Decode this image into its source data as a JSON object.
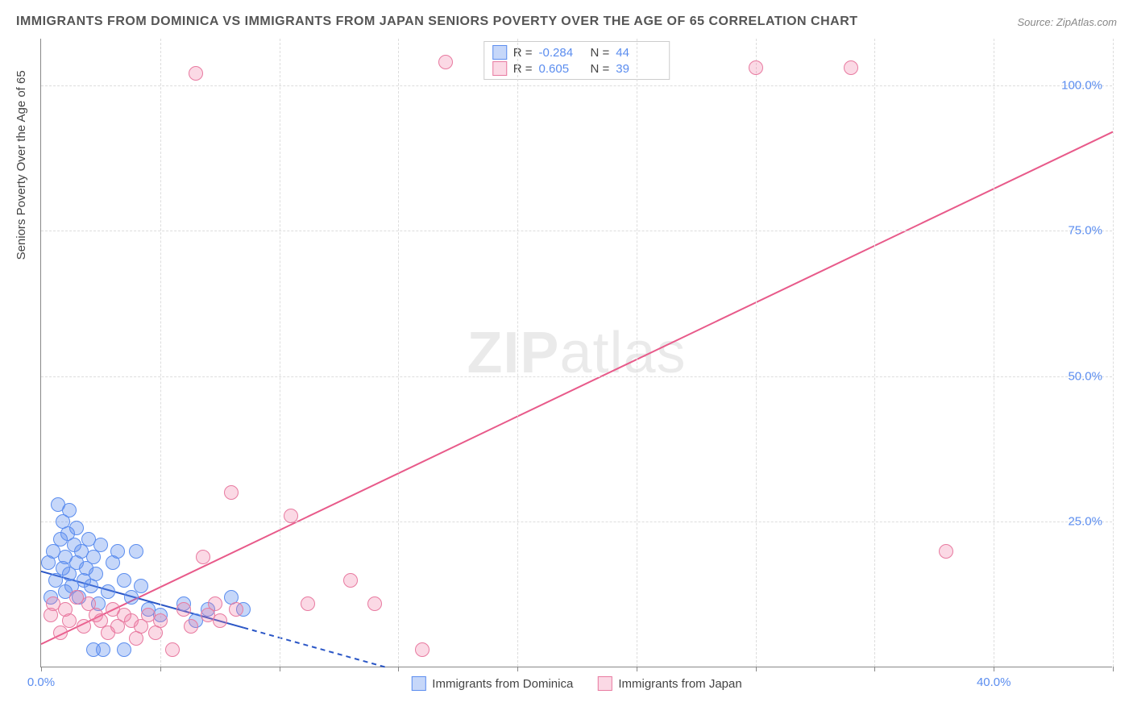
{
  "chart": {
    "type": "scatter",
    "title": "IMMIGRANTS FROM DOMINICA VS IMMIGRANTS FROM JAPAN SENIORS POVERTY OVER THE AGE OF 65 CORRELATION CHART",
    "source": "Source: ZipAtlas.com",
    "watermark": "ZIPatlas",
    "y_axis_label": "Seniors Poverty Over the Age of 65",
    "background_color": "#ffffff",
    "grid_color": "#dddddd",
    "axis_color": "#888888",
    "tick_label_color": "#5b8def",
    "xlim": [
      0,
      45
    ],
    "ylim": [
      0,
      108
    ],
    "x_ticks": [
      0,
      5,
      10,
      15,
      20,
      25,
      30,
      35,
      40,
      45
    ],
    "x_tick_labels": {
      "0": "0.0%",
      "40": "40.0%"
    },
    "y_ticks": [
      25,
      50,
      75,
      100
    ],
    "y_tick_labels": {
      "25": "25.0%",
      "50": "50.0%",
      "75": "75.0%",
      "100": "100.0%"
    },
    "marker_radius": 9,
    "marker_border_width": 1,
    "series": [
      {
        "name": "Immigrants from Dominica",
        "fill_color": "rgba(91,141,239,0.35)",
        "border_color": "#5b8def",
        "r_value": "-0.284",
        "n_value": "44",
        "trend": {
          "x1": 0,
          "y1": 16.5,
          "x2": 14.5,
          "y2": 0,
          "solid_until_x": 8.5,
          "color": "#2a56c6",
          "width": 2
        },
        "points": [
          [
            0.3,
            18
          ],
          [
            0.4,
            12
          ],
          [
            0.5,
            20
          ],
          [
            0.6,
            15
          ],
          [
            0.7,
            28
          ],
          [
            0.8,
            22
          ],
          [
            0.9,
            25
          ],
          [
            0.9,
            17
          ],
          [
            1.0,
            13
          ],
          [
            1.0,
            19
          ],
          [
            1.1,
            23
          ],
          [
            1.2,
            16
          ],
          [
            1.2,
            27
          ],
          [
            1.3,
            14
          ],
          [
            1.4,
            21
          ],
          [
            1.5,
            18
          ],
          [
            1.5,
            24
          ],
          [
            1.6,
            12
          ],
          [
            1.7,
            20
          ],
          [
            1.8,
            15
          ],
          [
            1.9,
            17
          ],
          [
            2.0,
            22
          ],
          [
            2.1,
            14
          ],
          [
            2.2,
            19
          ],
          [
            2.2,
            3
          ],
          [
            2.3,
            16
          ],
          [
            2.4,
            11
          ],
          [
            2.5,
            21
          ],
          [
            2.6,
            3
          ],
          [
            2.8,
            13
          ],
          [
            3.0,
            18
          ],
          [
            3.2,
            20
          ],
          [
            3.5,
            15
          ],
          [
            3.5,
            3
          ],
          [
            3.8,
            12
          ],
          [
            4.0,
            20
          ],
          [
            4.2,
            14
          ],
          [
            4.5,
            10
          ],
          [
            5.0,
            9
          ],
          [
            6.0,
            11
          ],
          [
            6.5,
            8
          ],
          [
            7.0,
            10
          ],
          [
            8.0,
            12
          ],
          [
            8.5,
            10
          ]
        ]
      },
      {
        "name": "Immigrants from Japan",
        "fill_color": "rgba(239,120,160,0.28)",
        "border_color": "#e87aa0",
        "r_value": "0.605",
        "n_value": "39",
        "trend": {
          "x1": 0,
          "y1": 4,
          "x2": 45,
          "y2": 92,
          "solid_until_x": 45,
          "color": "#e85a8a",
          "width": 2
        },
        "points": [
          [
            0.4,
            9
          ],
          [
            0.5,
            11
          ],
          [
            0.8,
            6
          ],
          [
            1.0,
            10
          ],
          [
            1.2,
            8
          ],
          [
            1.5,
            12
          ],
          [
            1.8,
            7
          ],
          [
            2.0,
            11
          ],
          [
            2.3,
            9
          ],
          [
            2.5,
            8
          ],
          [
            2.8,
            6
          ],
          [
            3.0,
            10
          ],
          [
            3.2,
            7
          ],
          [
            3.5,
            9
          ],
          [
            3.8,
            8
          ],
          [
            4.0,
            5
          ],
          [
            4.2,
            7
          ],
          [
            4.5,
            9
          ],
          [
            4.8,
            6
          ],
          [
            5.0,
            8
          ],
          [
            5.5,
            3
          ],
          [
            6.0,
            10
          ],
          [
            6.3,
            7
          ],
          [
            6.8,
            19
          ],
          [
            7.0,
            9
          ],
          [
            7.3,
            11
          ],
          [
            7.5,
            8
          ],
          [
            8.0,
            30
          ],
          [
            8.2,
            10
          ],
          [
            10.5,
            26
          ],
          [
            11.2,
            11
          ],
          [
            13.0,
            15
          ],
          [
            14.0,
            11
          ],
          [
            16.0,
            3
          ],
          [
            17.0,
            104
          ],
          [
            6.5,
            102
          ],
          [
            30.0,
            103
          ],
          [
            34.0,
            103
          ],
          [
            38.0,
            20
          ]
        ]
      }
    ],
    "stats_box": {
      "r_label": "R =",
      "n_label": "N ="
    },
    "legend_bottom": true
  }
}
